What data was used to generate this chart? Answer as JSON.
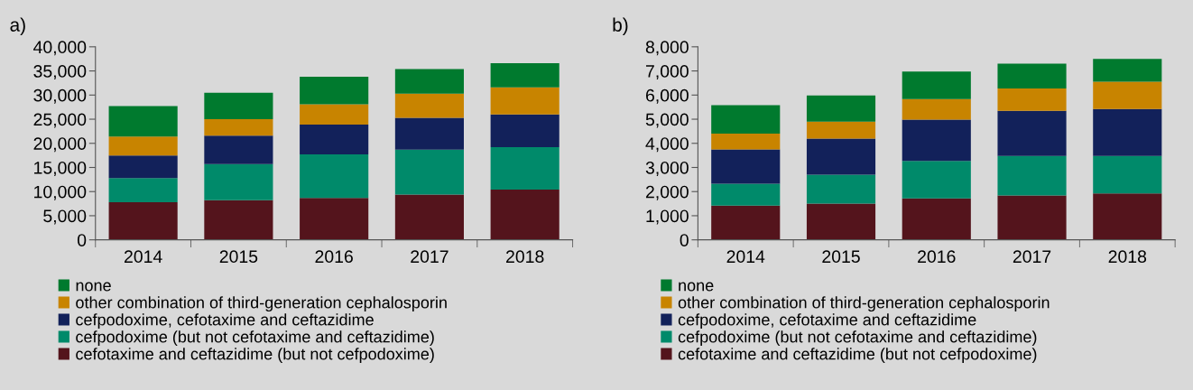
{
  "chart_data": [
    {
      "type": "bar",
      "title": "a)",
      "stacked": true,
      "grid": false,
      "legend": "bottom",
      "categories": [
        "2014",
        "2015",
        "2016",
        "2017",
        "2018"
      ],
      "ylim": [
        0,
        40000
      ],
      "yticks": [
        {
          "value": 0,
          "label": "0"
        },
        {
          "value": 5000,
          "label": "5,000"
        },
        {
          "value": 10000,
          "label": "10,000"
        },
        {
          "value": 15000,
          "label": "15,000"
        },
        {
          "value": 20000,
          "label": "20,000"
        },
        {
          "value": 25000,
          "label": "25,000"
        },
        {
          "value": 30000,
          "label": "30,000"
        },
        {
          "value": 35000,
          "label": "35,000"
        },
        {
          "value": 40000,
          "label": "40,000"
        }
      ],
      "series": [
        {
          "name": "cefotaxime and ceftazidime (but not cefpodoxime)",
          "color": "#54141c",
          "values": [
            7800,
            8200,
            8700,
            9400,
            10400
          ]
        },
        {
          "name": "cefpodoxime (but not cefotaxime and ceftazidime)",
          "color": "#008a6a",
          "values": [
            5000,
            7500,
            9000,
            9300,
            8800
          ]
        },
        {
          "name": "cefpodoxime, cefotaxime and ceftazidime",
          "color": "#12215a",
          "values": [
            4700,
            5900,
            6200,
            6600,
            6800
          ]
        },
        {
          "name": "other combination of third-generation cephalosporin",
          "color": "#c88400",
          "values": [
            3900,
            3400,
            4200,
            5000,
            5600
          ]
        },
        {
          "name": "none",
          "color": "#007a2e",
          "values": [
            6300,
            5500,
            5700,
            5100,
            5000
          ]
        }
      ]
    },
    {
      "type": "bar",
      "title": "b)",
      "stacked": true,
      "grid": false,
      "legend": "bottom",
      "categories": [
        "2014",
        "2015",
        "2016",
        "2017",
        "2018"
      ],
      "ylim": [
        0,
        8000
      ],
      "yticks": [
        {
          "value": 0,
          "label": "0"
        },
        {
          "value": 1000,
          "label": "1,000"
        },
        {
          "value": 2000,
          "label": "2,000"
        },
        {
          "value": 3000,
          "label": "3,000"
        },
        {
          "value": 4000,
          "label": "4,000"
        },
        {
          "value": 5000,
          "label": "5,000"
        },
        {
          "value": 6000,
          "label": "6,000"
        },
        {
          "value": 7000,
          "label": "7,000"
        },
        {
          "value": 8000,
          "label": "8,000"
        }
      ],
      "series": [
        {
          "name": "cefotaxime and ceftazidime (but not cefpodoxime)",
          "color": "#54141c",
          "values": [
            1420,
            1500,
            1720,
            1840,
            1920
          ]
        },
        {
          "name": "cefpodoxime (but not cefotaxime and ceftazidime)",
          "color": "#008a6a",
          "values": [
            910,
            1200,
            1550,
            1640,
            1560
          ]
        },
        {
          "name": "cefpodoxime, cefotaxime and ceftazidime",
          "color": "#12215a",
          "values": [
            1420,
            1500,
            1710,
            1870,
            1940
          ]
        },
        {
          "name": "other combination of third-generation cephalosporin",
          "color": "#c88400",
          "values": [
            650,
            700,
            850,
            920,
            1130
          ]
        },
        {
          "name": "none",
          "color": "#007a2e",
          "values": [
            1180,
            1080,
            1140,
            1030,
            950
          ]
        }
      ]
    }
  ]
}
